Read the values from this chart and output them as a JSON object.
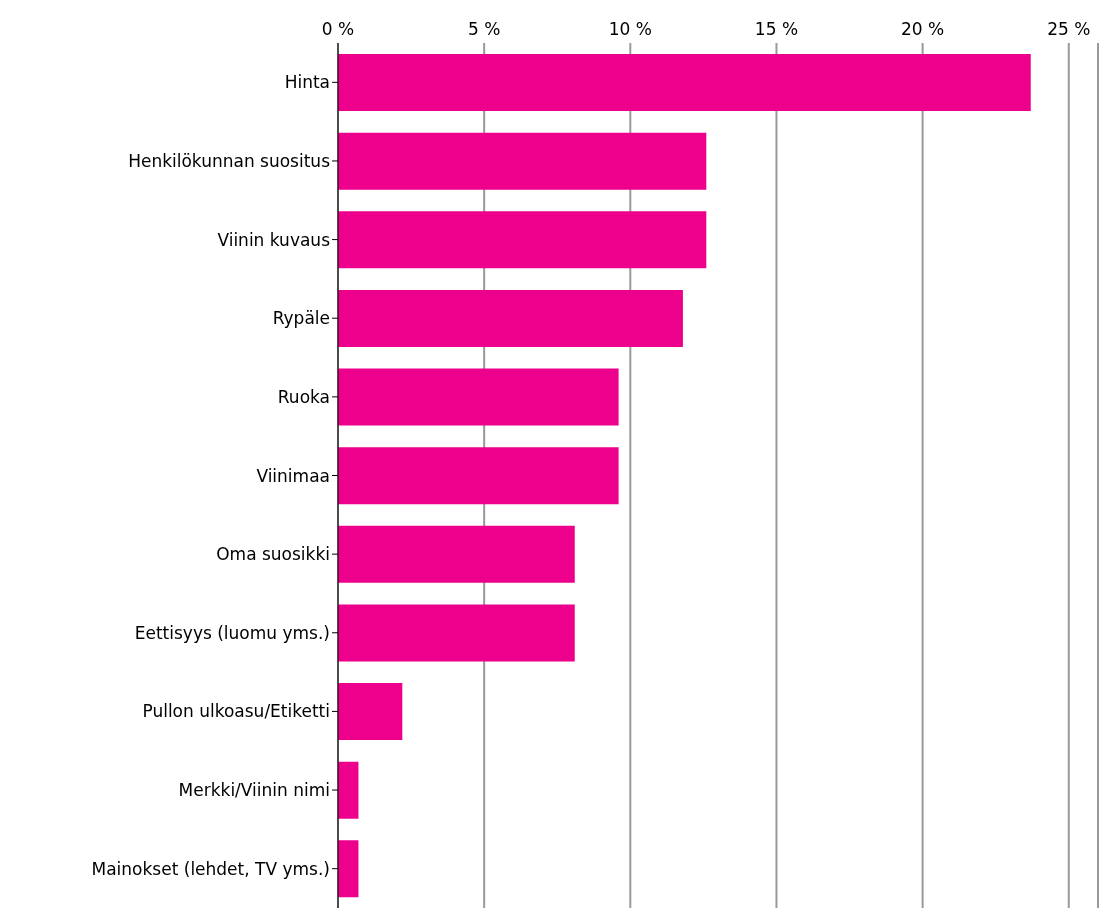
{
  "chart_data": {
    "type": "bar",
    "orientation": "horizontal",
    "categories": [
      "Hinta",
      "Henkilökunnan suositus",
      "Viinin kuvaus",
      "Rypäle",
      "Ruoka",
      "Viinimaa",
      "Oma suosikki",
      "Eettisyys (luomu yms.)",
      "Pullon ulkoasu/Etiketti",
      "Merkki/Viinin nimi",
      "Mainokset (lehdet, TV yms.)"
    ],
    "values": [
      23.7,
      12.6,
      12.6,
      11.8,
      9.6,
      9.6,
      8.1,
      8.1,
      2.2,
      0.7,
      0.7
    ],
    "color": "#ec008c",
    "xlim": [
      0,
      26
    ],
    "xticks": [
      {
        "value": 0,
        "label": "0 %"
      },
      {
        "value": 5,
        "label": "5 %"
      },
      {
        "value": 10,
        "label": "10 %"
      },
      {
        "value": 15,
        "label": "15 %"
      },
      {
        "value": 20,
        "label": "20 %"
      },
      {
        "value": 25,
        "label": "25 %"
      }
    ],
    "grid": "x"
  }
}
